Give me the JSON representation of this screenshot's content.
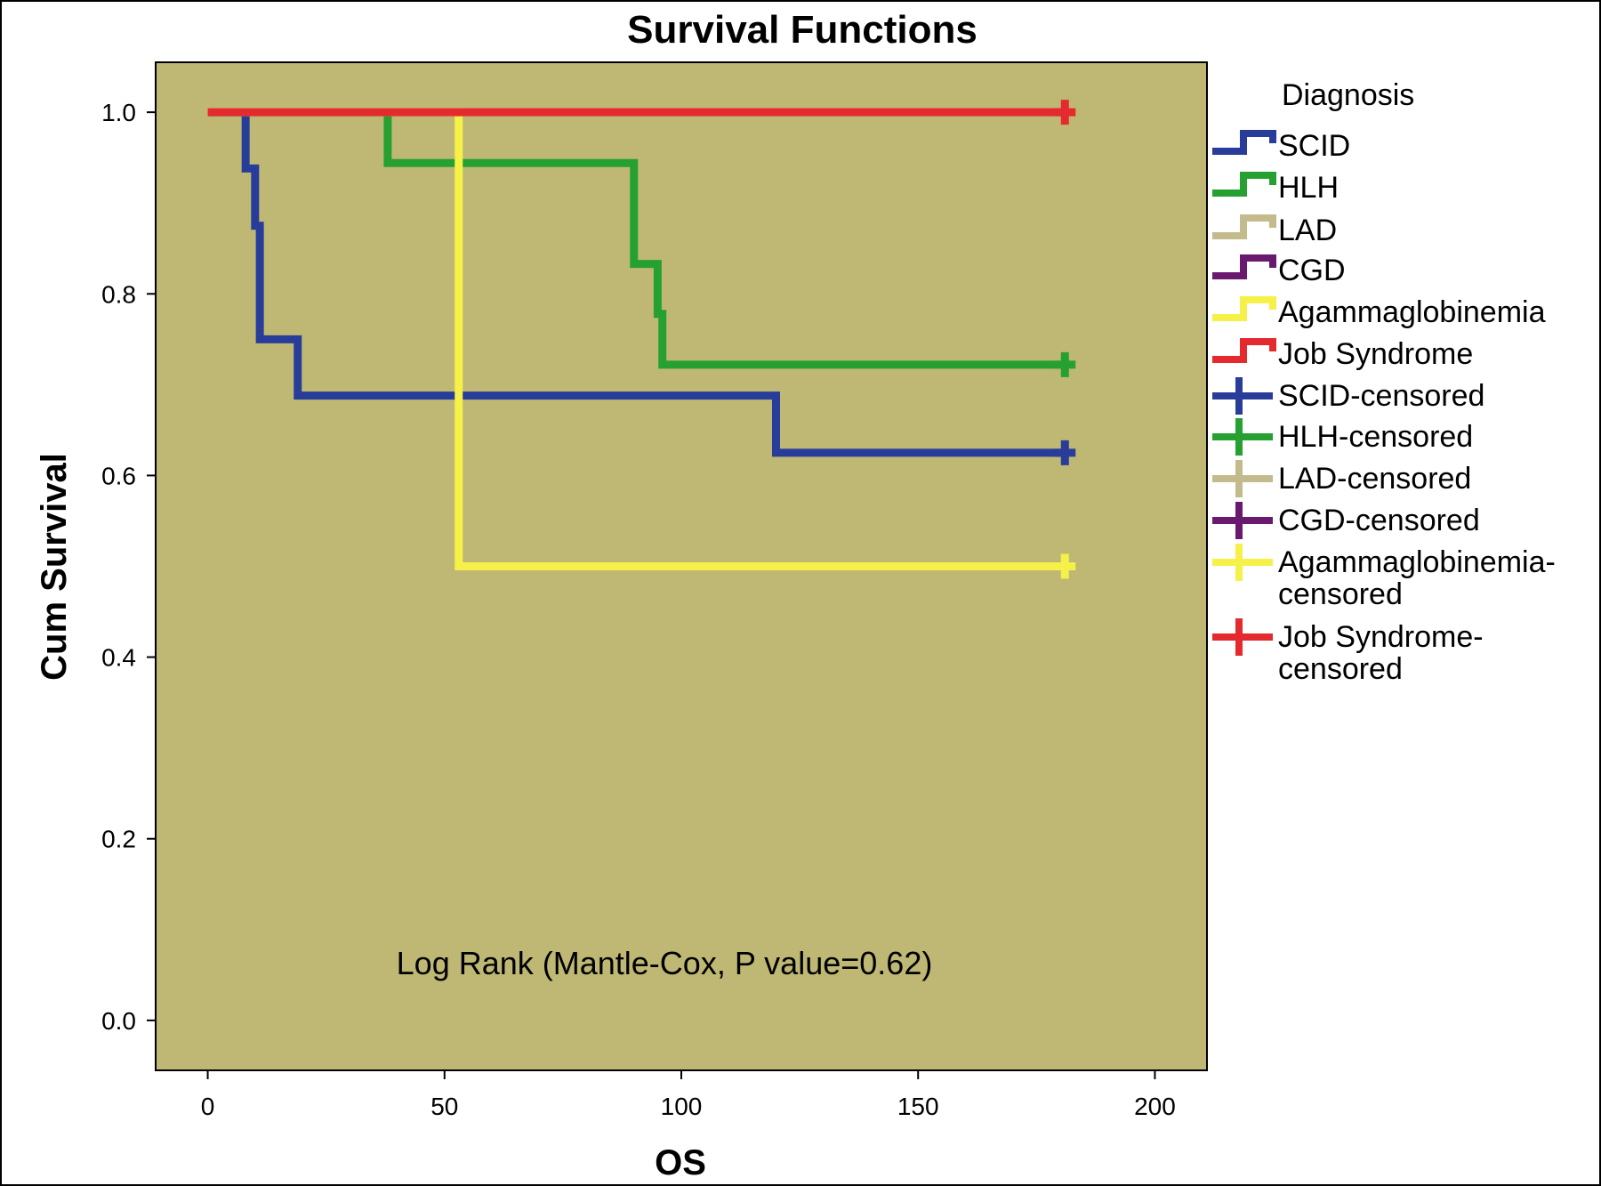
{
  "chart_data": {
    "type": "line",
    "subtype": "kaplan-meier step survival curves",
    "title": "Survival Functions",
    "xlabel": "OS",
    "ylabel": "Cum Survival",
    "xlim": [
      -11,
      211
    ],
    "ylim": [
      -0.055,
      1.055
    ],
    "x_ticks": [
      0,
      50,
      100,
      150,
      200
    ],
    "x_tick_labels": [
      "0",
      "50",
      "100",
      "150",
      "200"
    ],
    "y_ticks": [
      0.0,
      0.2,
      0.4,
      0.6,
      0.8,
      1.0
    ],
    "y_tick_labels": [
      "0.0",
      "0.2",
      "0.4",
      "0.6",
      "0.8",
      "1.0"
    ],
    "grid": false,
    "plot_background": "#bfb874",
    "legend_placement": "right",
    "legend_title": "Diagnosis",
    "annotation": "Log Rank (Mantle-Cox, P value=0.62)",
    "series": [
      {
        "name": "SCID",
        "color": "#283c99",
        "steps": [
          [
            0,
            1.0
          ],
          [
            8,
            0.938
          ],
          [
            10,
            0.875
          ],
          [
            11,
            0.75
          ],
          [
            19,
            0.688
          ],
          [
            120,
            0.625
          ],
          [
            181,
            0.625
          ]
        ],
        "censored": [
          [
            181,
            0.625
          ]
        ]
      },
      {
        "name": "HLH",
        "color": "#27a032",
        "steps": [
          [
            0,
            1.0
          ],
          [
            38,
            0.944
          ],
          [
            90,
            0.833
          ],
          [
            95,
            0.778
          ],
          [
            96,
            0.722
          ],
          [
            181,
            0.722
          ]
        ],
        "censored": [
          [
            181,
            0.722
          ]
        ]
      },
      {
        "name": "LAD",
        "color": "#c3bb8c",
        "steps": [],
        "censored": []
      },
      {
        "name": "CGD",
        "color": "#6a1a6e",
        "steps": [],
        "censored": []
      },
      {
        "name": "Agammaglobinemia",
        "color": "#f6f148",
        "steps": [
          [
            0,
            1.0
          ],
          [
            53,
            0.5
          ],
          [
            181,
            0.5
          ]
        ],
        "censored": [
          [
            181,
            0.5
          ]
        ]
      },
      {
        "name": "Job Syndrome",
        "color": "#e42a2e",
        "steps": [
          [
            0,
            1.0
          ],
          [
            181,
            1.0
          ]
        ],
        "censored": [
          [
            181,
            1.0
          ]
        ]
      }
    ],
    "legend_entries": [
      {
        "lines": [
          "SCID"
        ],
        "color": "#283c99",
        "marker": "step"
      },
      {
        "lines": [
          "HLH"
        ],
        "color": "#27a032",
        "marker": "step"
      },
      {
        "lines": [
          "LAD"
        ],
        "color": "#c3bb8c",
        "marker": "step"
      },
      {
        "lines": [
          "CGD"
        ],
        "color": "#6a1a6e",
        "marker": "step"
      },
      {
        "lines": [
          "Agammaglobinemia"
        ],
        "color": "#f6f148",
        "marker": "step"
      },
      {
        "lines": [
          "Job Syndrome"
        ],
        "color": "#e42a2e",
        "marker": "step"
      },
      {
        "lines": [
          "SCID-censored"
        ],
        "color": "#283c99",
        "marker": "cross"
      },
      {
        "lines": [
          "HLH-censored"
        ],
        "color": "#27a032",
        "marker": "cross"
      },
      {
        "lines": [
          "LAD-censored"
        ],
        "color": "#c3bb8c",
        "marker": "cross"
      },
      {
        "lines": [
          "CGD-censored"
        ],
        "color": "#6a1a6e",
        "marker": "cross"
      },
      {
        "lines": [
          "Agammaglobinemia-",
          "censored"
        ],
        "color": "#f6f148",
        "marker": "cross"
      },
      {
        "lines": [
          "Job Syndrome-",
          "censored"
        ],
        "color": "#e42a2e",
        "marker": "cross"
      }
    ]
  }
}
